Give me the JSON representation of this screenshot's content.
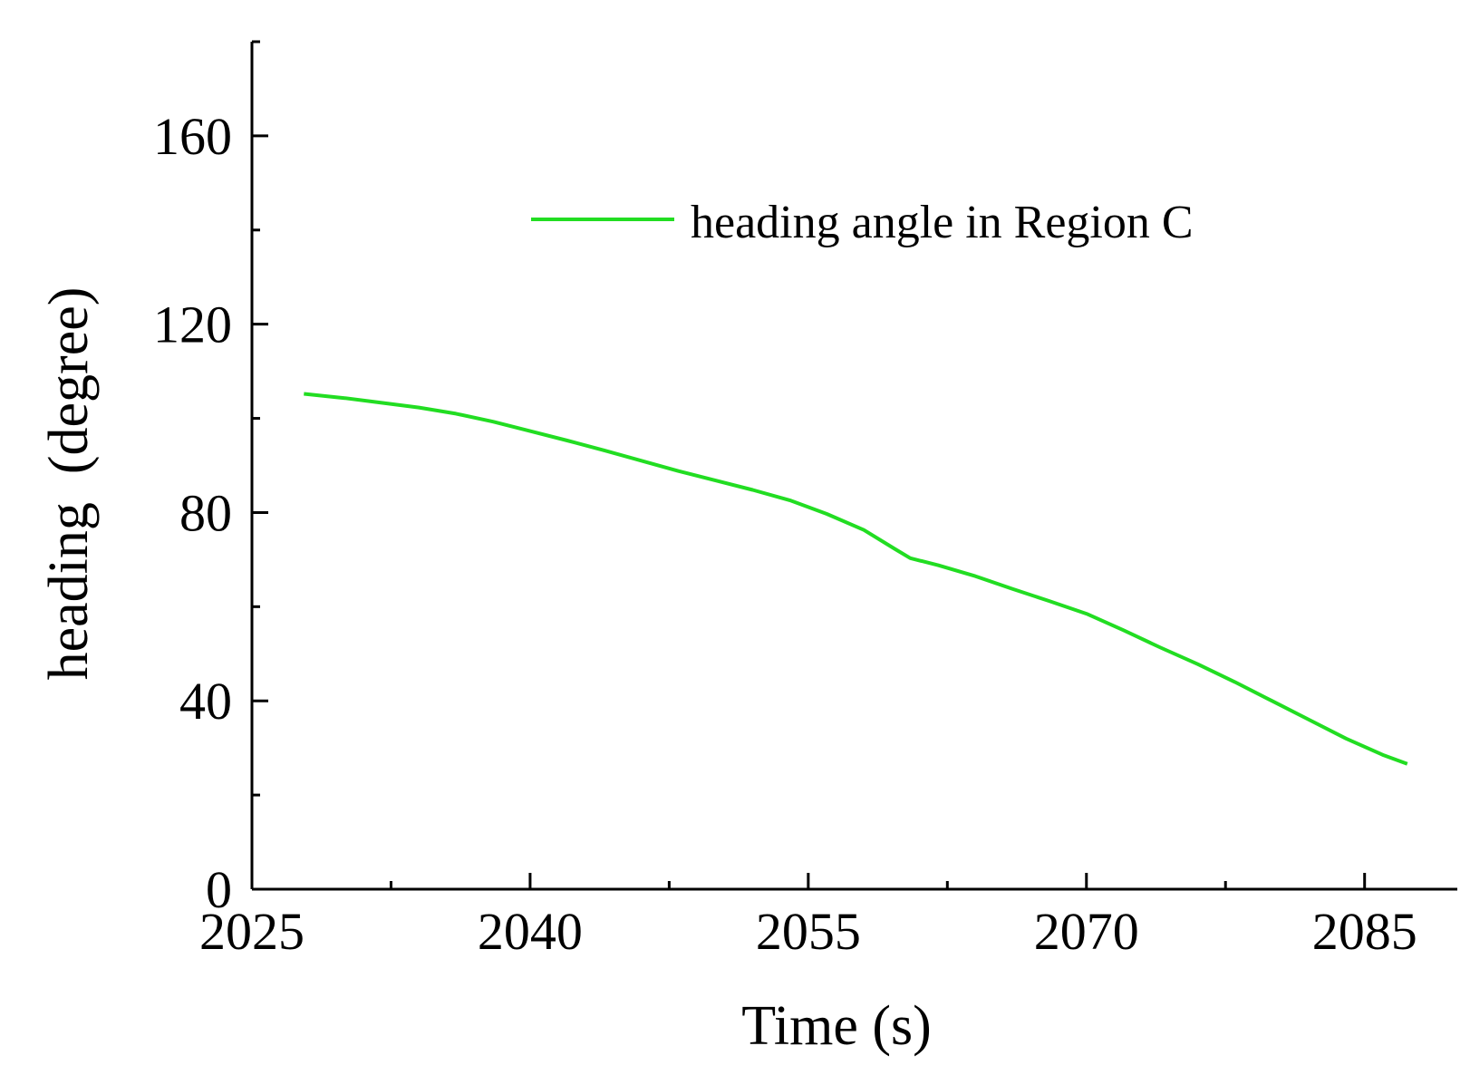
{
  "chart_data": {
    "type": "line",
    "xlabel": "Time (s)",
    "ylabel": "heading  (degree)",
    "xlim": [
      2025,
      2090
    ],
    "ylim": [
      0,
      180
    ],
    "xticks": [
      2025,
      2040,
      2055,
      2070,
      2085
    ],
    "xminor": [
      2032.5,
      2047.5,
      2062.5,
      2077.5
    ],
    "yticks": [
      0,
      40,
      80,
      120,
      160
    ],
    "yminor": [
      20,
      60,
      100,
      140,
      180
    ],
    "grid": false,
    "legend_position": "top-right",
    "series": [
      {
        "name": "heading angle in Region C",
        "color": "#22dd22",
        "x": [
          2027.8,
          2030,
          2032,
          2034,
          2036,
          2038,
          2040,
          2042,
          2044,
          2046,
          2048,
          2050,
          2052,
          2054,
          2056,
          2058,
          2059.7,
          2060.5,
          2062,
          2064,
          2066,
          2068,
          2070,
          2072,
          2074,
          2076,
          2078,
          2080,
          2082,
          2084,
          2086,
          2087.3
        ],
        "y": [
          105.2,
          104.3,
          103.3,
          102.3,
          101,
          99.3,
          97.3,
          95.3,
          93.2,
          91,
          88.8,
          86.8,
          84.8,
          82.6,
          79.7,
          76.3,
          72.2,
          70.3,
          68.8,
          66.5,
          63.8,
          61.2,
          58.5,
          55,
          51.3,
          47.8,
          44,
          40,
          36,
          32,
          28.5,
          26.6
        ]
      }
    ]
  }
}
